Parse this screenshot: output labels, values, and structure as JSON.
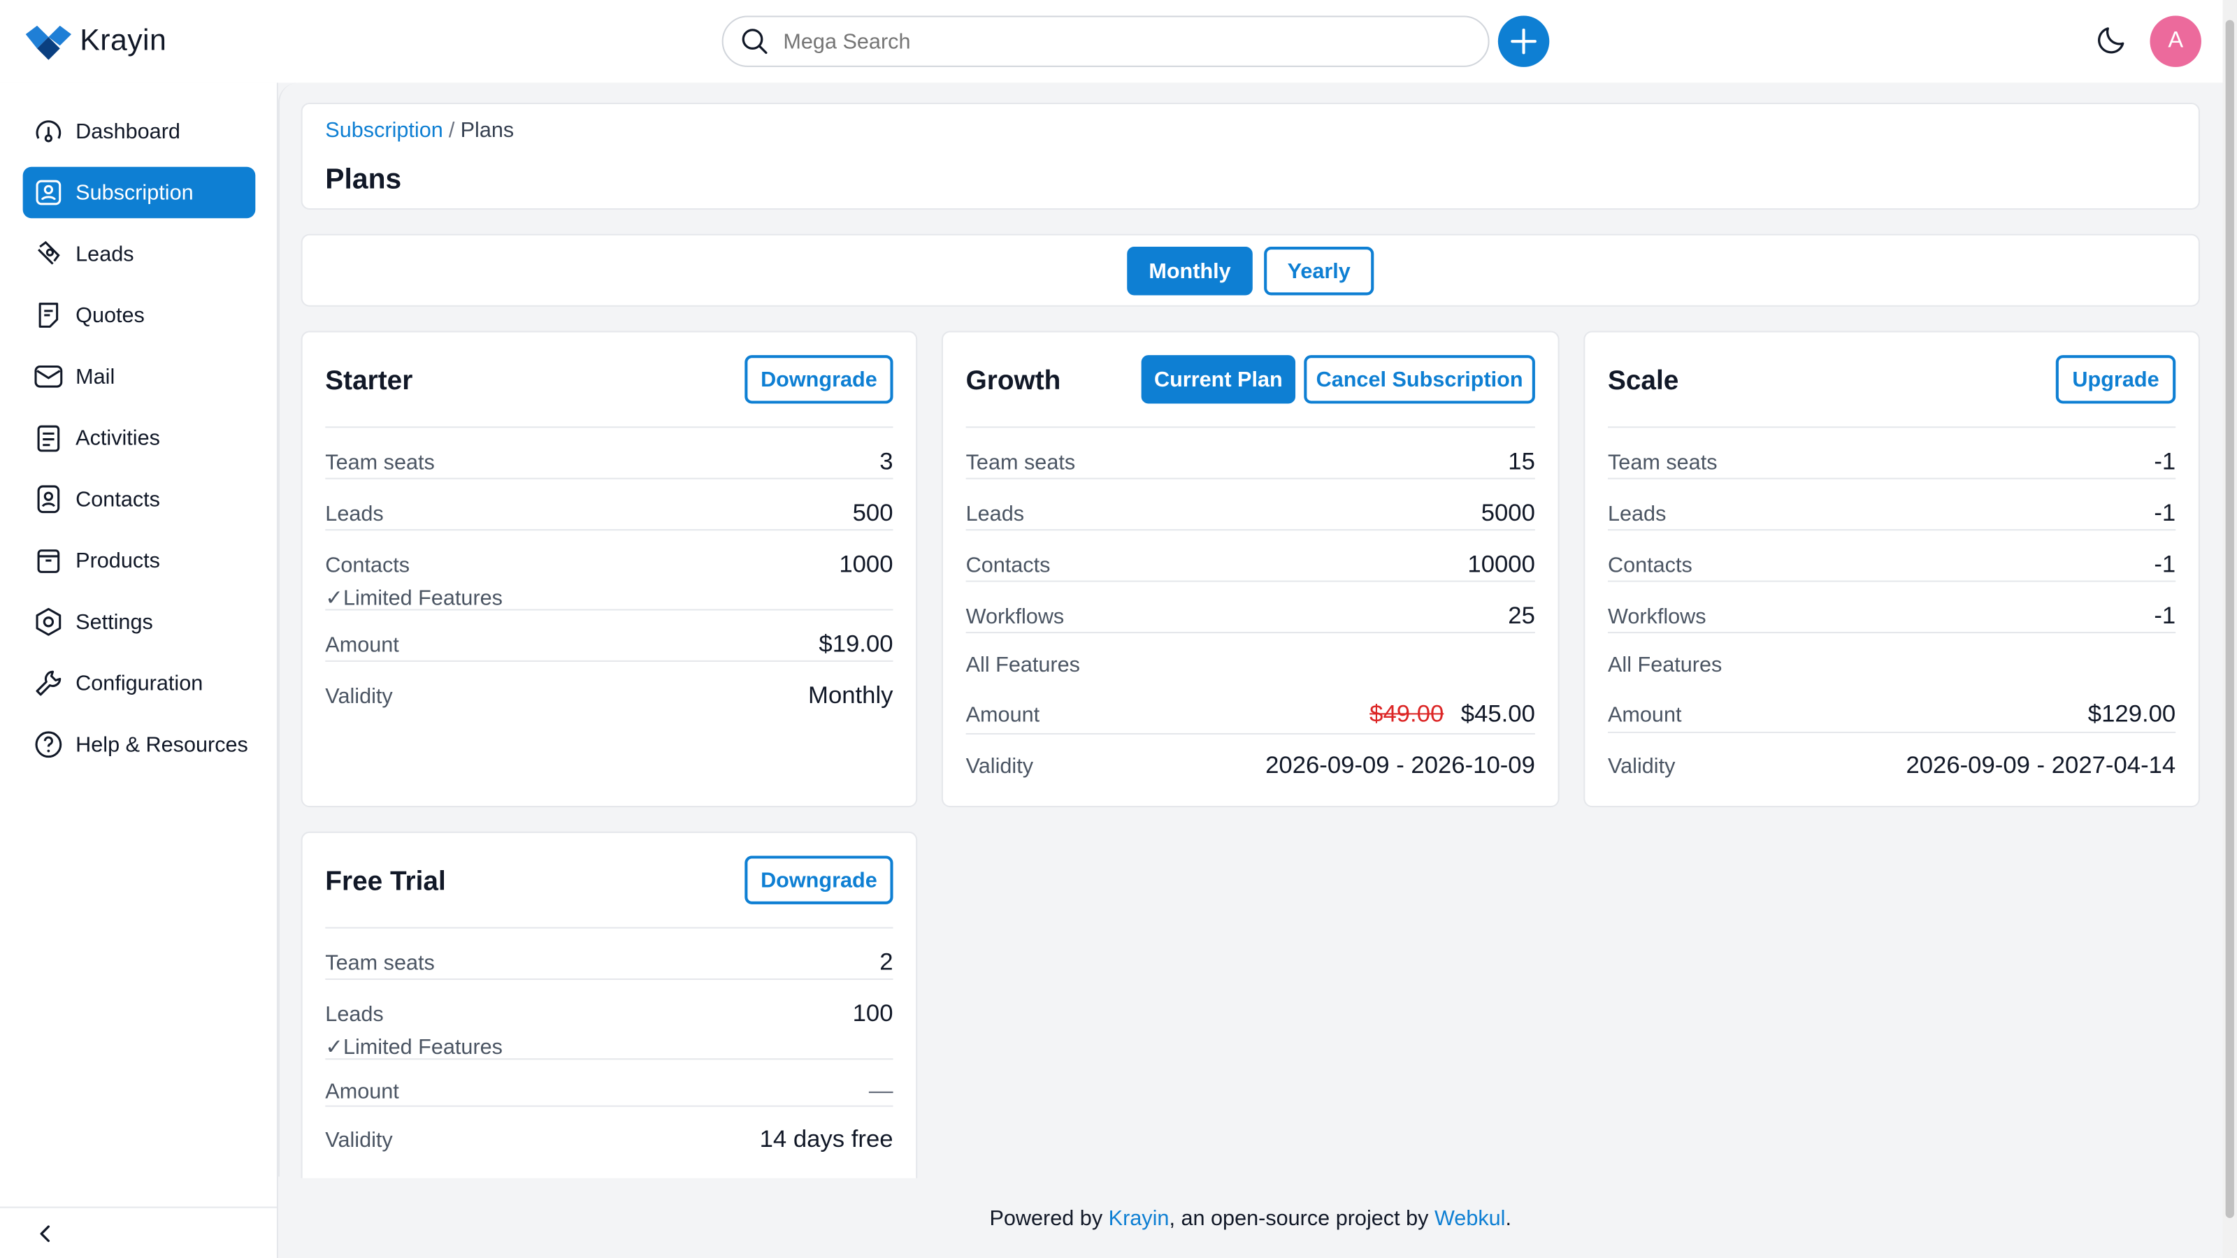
{
  "app": {
    "name": "Krayin"
  },
  "search": {
    "placeholder": "Mega Search"
  },
  "user": {
    "avatar_initial": "A"
  },
  "sidebar": {
    "items": [
      {
        "label": "Dashboard",
        "icon": "dashboard-icon",
        "active": false
      },
      {
        "label": "Subscription",
        "icon": "subscription-icon",
        "active": true
      },
      {
        "label": "Leads",
        "icon": "leads-icon",
        "active": false
      },
      {
        "label": "Quotes",
        "icon": "quotes-icon",
        "active": false
      },
      {
        "label": "Mail",
        "icon": "mail-icon",
        "active": false
      },
      {
        "label": "Activities",
        "icon": "activities-icon",
        "active": false
      },
      {
        "label": "Contacts",
        "icon": "contacts-icon",
        "active": false
      },
      {
        "label": "Products",
        "icon": "products-icon",
        "active": false
      },
      {
        "label": "Settings",
        "icon": "settings-icon",
        "active": false
      },
      {
        "label": "Configuration",
        "icon": "configuration-icon",
        "active": false
      },
      {
        "label": "Help & Resources",
        "icon": "help-icon",
        "active": false
      }
    ]
  },
  "breadcrumb": {
    "parent": "Subscription",
    "separator": "/",
    "current": "Plans"
  },
  "page": {
    "title": "Plans"
  },
  "billing_toggle": {
    "monthly": "Monthly",
    "yearly": "Yearly",
    "selected": "Monthly"
  },
  "plans": {
    "starter": {
      "name": "Starter",
      "action": "Downgrade",
      "rows": [
        {
          "label": "Team seats",
          "value": "3"
        },
        {
          "label": "Leads",
          "value": "500"
        },
        {
          "label": "Contacts",
          "value": "1000"
        },
        {
          "label": "Amount",
          "value": "$19.00"
        },
        {
          "label": "Validity",
          "value": "Monthly"
        }
      ],
      "features_note": "Limited Features"
    },
    "growth": {
      "name": "Growth",
      "badge": "Current Plan",
      "action": "Cancel Subscription",
      "rows": [
        {
          "label": "Team seats",
          "value": "15"
        },
        {
          "label": "Leads",
          "value": "5000"
        },
        {
          "label": "Contacts",
          "value": "10000"
        },
        {
          "label": "Workflows",
          "value": "25"
        },
        {
          "label": "Amount",
          "value": "$45.00",
          "original_value": "$49.00"
        },
        {
          "label": "Validity",
          "value": "2026-09-09 - 2026-10-09"
        }
      ],
      "features_note": "All Features"
    },
    "scale": {
      "name": "Scale",
      "action": "Upgrade",
      "rows": [
        {
          "label": "Team seats",
          "value": "-1"
        },
        {
          "label": "Leads",
          "value": "-1"
        },
        {
          "label": "Contacts",
          "value": "-1"
        },
        {
          "label": "Workflows",
          "value": "-1"
        },
        {
          "label": "Amount",
          "value": "$129.00"
        },
        {
          "label": "Validity",
          "value": "2026-09-09 - 2027-04-14"
        }
      ],
      "features_note": "All Features"
    },
    "free_trial": {
      "name": "Free Trial",
      "action": "Downgrade",
      "rows": [
        {
          "label": "Team seats",
          "value": "2"
        },
        {
          "label": "Leads",
          "value": "100"
        },
        {
          "label": "Amount",
          "value": "—"
        },
        {
          "label": "Validity",
          "value": "14 days free"
        }
      ],
      "features_note": "Limited Features"
    }
  },
  "footer": {
    "prefix": "Powered by",
    "link1": "Krayin",
    "middle": ", an open-source project by",
    "link2": "Webkul",
    "suffix": "."
  },
  "colors": {
    "accent": "#0e7fd3",
    "avatar": "#ec6a9c",
    "strike": "#dc2626"
  }
}
